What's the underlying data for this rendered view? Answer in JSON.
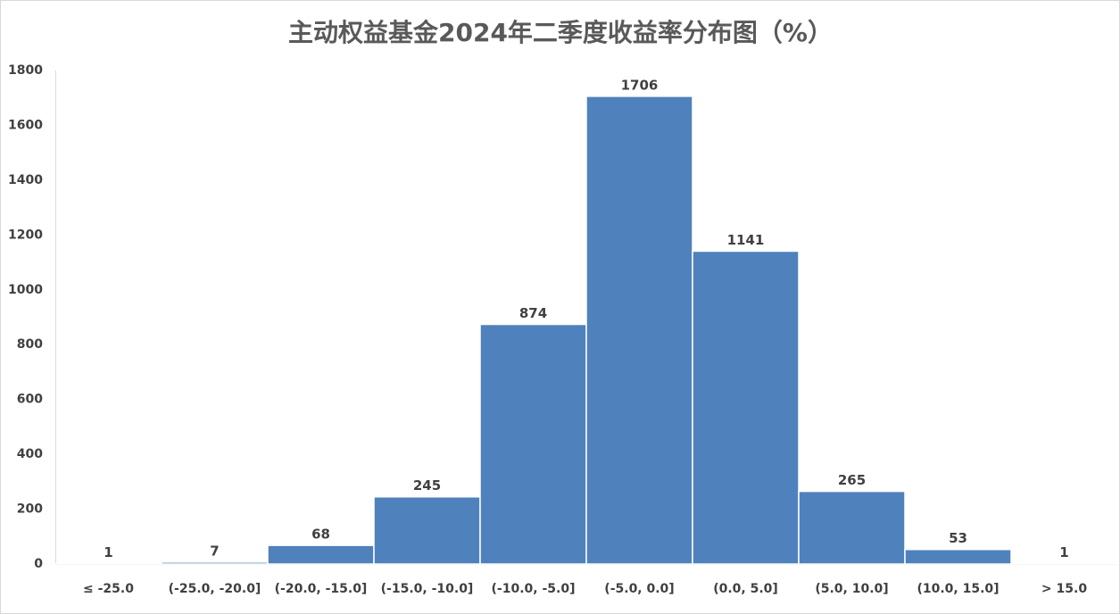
{
  "chart_data": {
    "type": "bar",
    "title": "主动权益基金2024年二季度收益率分布图（%）",
    "categories": [
      "≤ -25.0",
      "(-25.0, -20.0]",
      "(-20.0, -15.0]",
      "(-15.0, -10.0]",
      "(-10.0, -5.0]",
      "(-5.0, 0.0]",
      "(0.0, 5.0]",
      "(5.0, 10.0]",
      "(10.0, 15.0]",
      "> 15.0"
    ],
    "values": [
      1,
      7,
      68,
      245,
      874,
      1706,
      1141,
      265,
      53,
      1
    ],
    "color": "#4f81bd",
    "ylim": [
      0,
      1800
    ],
    "yticks": [
      0,
      200,
      400,
      600,
      800,
      1000,
      1200,
      1400,
      1600,
      1800
    ],
    "grid": false
  }
}
